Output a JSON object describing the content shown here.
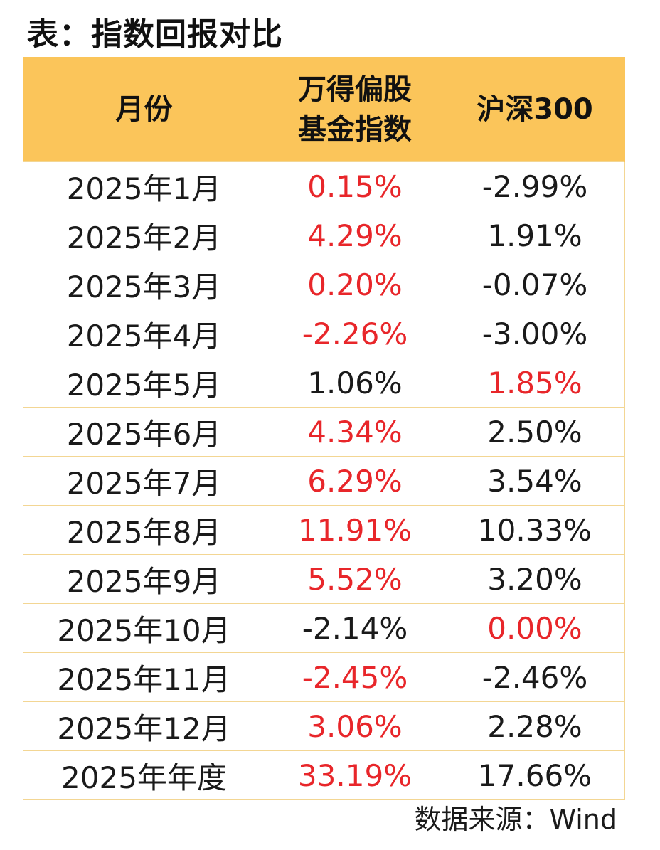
{
  "title": "表：指数回报对比",
  "table": {
    "headers": {
      "month": "月份",
      "fund_line1": "万得偏股",
      "fund_line2": "基金指数",
      "csi300": "沪深300"
    },
    "rows": [
      {
        "month": "2025年1月",
        "fund": "0.15%",
        "csi300": "-2.99%",
        "fund_red": true,
        "csi300_red": false
      },
      {
        "month": "2025年2月",
        "fund": "4.29%",
        "csi300": "1.91%",
        "fund_red": true,
        "csi300_red": false
      },
      {
        "month": "2025年3月",
        "fund": "0.20%",
        "csi300": "-0.07%",
        "fund_red": true,
        "csi300_red": false
      },
      {
        "month": "2025年4月",
        "fund": "-2.26%",
        "csi300": "-3.00%",
        "fund_red": true,
        "csi300_red": false
      },
      {
        "month": "2025年5月",
        "fund": "1.06%",
        "csi300": "1.85%",
        "fund_red": false,
        "csi300_red": true
      },
      {
        "month": "2025年6月",
        "fund": "4.34%",
        "csi300": "2.50%",
        "fund_red": true,
        "csi300_red": false
      },
      {
        "month": "2025年7月",
        "fund": "6.29%",
        "csi300": "3.54%",
        "fund_red": true,
        "csi300_red": false
      },
      {
        "month": "2025年8月",
        "fund": "11.91%",
        "csi300": "10.33%",
        "fund_red": true,
        "csi300_red": false
      },
      {
        "month": "2025年9月",
        "fund": "5.52%",
        "csi300": "3.20%",
        "fund_red": true,
        "csi300_red": false
      },
      {
        "month": "2025年10月",
        "fund": "-2.14%",
        "csi300": "0.00%",
        "fund_red": false,
        "csi300_red": true
      },
      {
        "month": "2025年11月",
        "fund": "-2.45%",
        "csi300": "-2.46%",
        "fund_red": true,
        "csi300_red": false
      },
      {
        "month": "2025年12月",
        "fund": "3.06%",
        "csi300": "2.28%",
        "fund_red": true,
        "csi300_red": false
      },
      {
        "month": "2025年年度",
        "fund": "33.19%",
        "csi300": "17.66%",
        "fund_red": true,
        "csi300_red": false
      }
    ]
  },
  "source": "数据来源：Wind",
  "colors": {
    "header_bg": "#fbc55a",
    "grid": "#f3d693",
    "highlight_red": "#e8262a",
    "text": "#1a1a1a"
  }
}
